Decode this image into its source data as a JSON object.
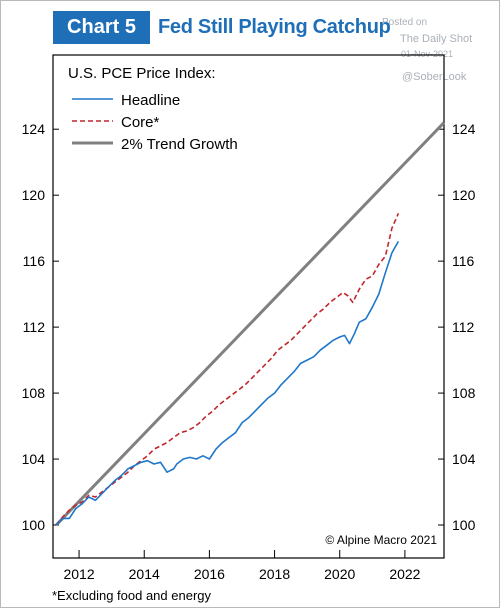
{
  "header": {
    "badge": "Chart 5",
    "title": "Fed Still Playing Catchup"
  },
  "watermark": {
    "line1": "Posted on",
    "line2": "The Daily Shot",
    "line3": "01-Nov-2021",
    "line4": "@SoberLook"
  },
  "footnote": "*Excluding food and energy",
  "colors": {
    "brand_blue": "#1f6fb8",
    "headline": "#1f77c9",
    "core": "#c0272d",
    "trend": "#808080"
  },
  "chart_data": {
    "type": "line",
    "legend_title": "U.S. PCE Price Index:",
    "legend_position": "top-left",
    "credit": "© Alpine Macro 2021",
    "grid": false,
    "xlim": [
      2011.2,
      2023.2
    ],
    "ylim": [
      98,
      128.5
    ],
    "x_ticks": [
      {
        "value": 2012,
        "label": "2012"
      },
      {
        "value": 2014,
        "label": "2014"
      },
      {
        "value": 2016,
        "label": "2016"
      },
      {
        "value": 2018,
        "label": "2018"
      },
      {
        "value": 2020,
        "label": "2020"
      },
      {
        "value": 2022,
        "label": "2022"
      }
    ],
    "y_ticks": [
      {
        "value": 100,
        "label": "100"
      },
      {
        "value": 104,
        "label": "104"
      },
      {
        "value": 108,
        "label": "108"
      },
      {
        "value": 112,
        "label": "112"
      },
      {
        "value": 116,
        "label": "116"
      },
      {
        "value": 120,
        "label": "120"
      },
      {
        "value": 124,
        "label": "124"
      }
    ],
    "series": [
      {
        "name": "Headline",
        "style": "solid",
        "x": [
          2011.3,
          2011.5,
          2011.7,
          2011.9,
          2012.1,
          2012.3,
          2012.5,
          2012.7,
          2012.9,
          2013.1,
          2013.3,
          2013.5,
          2013.7,
          2013.9,
          2014.1,
          2014.3,
          2014.5,
          2014.7,
          2014.9,
          2015.0,
          2015.2,
          2015.4,
          2015.6,
          2015.8,
          2016.0,
          2016.2,
          2016.4,
          2016.6,
          2016.8,
          2017.0,
          2017.2,
          2017.4,
          2017.6,
          2017.8,
          2018.0,
          2018.2,
          2018.4,
          2018.6,
          2018.8,
          2019.0,
          2019.2,
          2019.4,
          2019.6,
          2019.8,
          2020.0,
          2020.15,
          2020.3,
          2020.45,
          2020.6,
          2020.8,
          2021.0,
          2021.2,
          2021.4,
          2021.6,
          2021.8
        ],
        "values": [
          100.0,
          100.4,
          100.4,
          101.0,
          101.3,
          101.7,
          101.5,
          101.9,
          102.3,
          102.7,
          103.0,
          103.4,
          103.6,
          103.8,
          103.9,
          103.7,
          103.8,
          103.2,
          103.4,
          103.7,
          104.0,
          104.1,
          104.0,
          104.2,
          104.0,
          104.6,
          105.0,
          105.3,
          105.6,
          106.2,
          106.5,
          106.9,
          107.3,
          107.7,
          108.0,
          108.5,
          108.9,
          109.3,
          109.8,
          110.0,
          110.2,
          110.6,
          110.9,
          111.2,
          111.4,
          111.5,
          111.0,
          111.6,
          112.3,
          112.5,
          113.2,
          114.0,
          115.3,
          116.5,
          117.2
        ]
      },
      {
        "name": "Core*",
        "style": "dashed",
        "x": [
          2011.3,
          2011.5,
          2011.7,
          2011.9,
          2012.1,
          2012.3,
          2012.5,
          2012.7,
          2012.9,
          2013.1,
          2013.3,
          2013.5,
          2013.7,
          2013.9,
          2014.1,
          2014.3,
          2014.5,
          2014.7,
          2014.9,
          2015.1,
          2015.3,
          2015.5,
          2015.7,
          2015.9,
          2016.1,
          2016.3,
          2016.5,
          2016.7,
          2016.9,
          2017.1,
          2017.3,
          2017.5,
          2017.7,
          2017.9,
          2018.1,
          2018.3,
          2018.5,
          2018.7,
          2018.9,
          2019.1,
          2019.3,
          2019.5,
          2019.7,
          2019.9,
          2020.1,
          2020.25,
          2020.4,
          2020.6,
          2020.8,
          2021.0,
          2021.2,
          2021.4,
          2021.6,
          2021.8
        ],
        "values": [
          100.0,
          100.5,
          100.9,
          101.2,
          101.4,
          101.8,
          101.7,
          102.0,
          102.3,
          102.6,
          102.9,
          103.2,
          103.6,
          103.9,
          104.2,
          104.6,
          104.8,
          105.0,
          105.3,
          105.6,
          105.7,
          105.9,
          106.2,
          106.6,
          106.9,
          107.3,
          107.6,
          107.9,
          108.2,
          108.5,
          108.9,
          109.3,
          109.7,
          110.1,
          110.6,
          110.9,
          111.2,
          111.6,
          112.0,
          112.4,
          112.8,
          113.1,
          113.5,
          113.8,
          114.1,
          113.9,
          113.5,
          114.3,
          114.9,
          115.1,
          115.8,
          116.3,
          118.0,
          118.9
        ]
      },
      {
        "name": "2% Trend Growth",
        "style": "thick",
        "x": [
          2011.3,
          2023.2
        ],
        "values": [
          100.0,
          124.4
        ]
      }
    ]
  }
}
